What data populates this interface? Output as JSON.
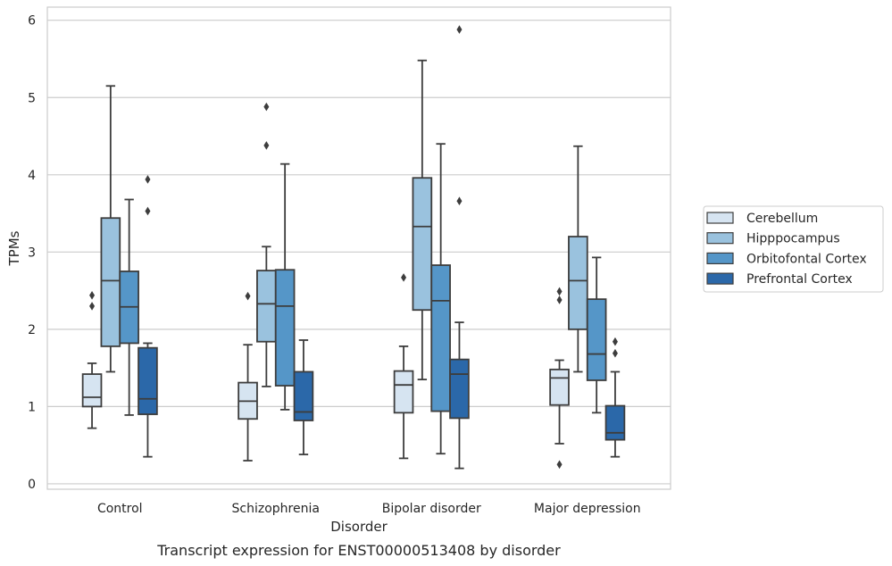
{
  "caption": "Transcript expression for ENST00000513408 by disorder",
  "chart_data": {
    "type": "box",
    "title": "",
    "xlabel": "Disorder",
    "ylabel": "TPMs",
    "ylim": [
      -0.07,
      6.17
    ],
    "yticks": [
      0,
      1,
      2,
      3,
      4,
      5,
      6
    ],
    "grid": "horizontal",
    "legend_position": "right",
    "categories": [
      "Control",
      "Schizophrenia",
      "Bipolar disorder",
      "Major depression"
    ],
    "series": [
      {
        "name": "Cerebellum",
        "color": "#d6e4f1",
        "boxes": [
          {
            "whisker_low": 0.72,
            "q1": 1.0,
            "median": 1.12,
            "q3": 1.42,
            "whisker_high": 1.56,
            "outliers": [
              2.3,
              2.44
            ]
          },
          {
            "whisker_low": 0.3,
            "q1": 0.84,
            "median": 1.07,
            "q3": 1.31,
            "whisker_high": 1.8,
            "outliers": [
              2.43
            ]
          },
          {
            "whisker_low": 0.33,
            "q1": 0.92,
            "median": 1.28,
            "q3": 1.46,
            "whisker_high": 1.78,
            "outliers": [
              2.67
            ]
          },
          {
            "whisker_low": 0.52,
            "q1": 1.02,
            "median": 1.37,
            "q3": 1.48,
            "whisker_high": 1.6,
            "outliers": [
              0.25,
              2.38,
              2.49
            ]
          }
        ]
      },
      {
        "name": "Hipppocampus",
        "color": "#9ac2de",
        "boxes": [
          {
            "whisker_low": 1.45,
            "q1": 1.78,
            "median": 2.63,
            "q3": 3.44,
            "whisker_high": 5.15,
            "outliers": []
          },
          {
            "whisker_low": 1.26,
            "q1": 1.84,
            "median": 2.33,
            "q3": 2.76,
            "whisker_high": 3.07,
            "outliers": [
              4.38,
              4.88
            ]
          },
          {
            "whisker_low": 1.35,
            "q1": 2.25,
            "median": 3.33,
            "q3": 3.96,
            "whisker_high": 5.48,
            "outliers": []
          },
          {
            "whisker_low": 1.45,
            "q1": 2.0,
            "median": 2.63,
            "q3": 3.2,
            "whisker_high": 4.37,
            "outliers": []
          }
        ]
      },
      {
        "name": "Orbitofontal Cortex",
        "color": "#5596c8",
        "boxes": [
          {
            "whisker_low": 0.89,
            "q1": 1.82,
            "median": 2.29,
            "q3": 2.75,
            "whisker_high": 3.68,
            "outliers": []
          },
          {
            "whisker_low": 0.96,
            "q1": 1.27,
            "median": 2.3,
            "q3": 2.77,
            "whisker_high": 4.14,
            "outliers": []
          },
          {
            "whisker_low": 0.39,
            "q1": 0.94,
            "median": 2.37,
            "q3": 2.83,
            "whisker_high": 4.4,
            "outliers": []
          },
          {
            "whisker_low": 0.92,
            "q1": 1.34,
            "median": 1.68,
            "q3": 2.39,
            "whisker_high": 2.93,
            "outliers": []
          }
        ]
      },
      {
        "name": "Prefrontal Cortex",
        "color": "#2b68a9",
        "boxes": [
          {
            "whisker_low": 0.35,
            "q1": 0.9,
            "median": 1.1,
            "q3": 1.76,
            "whisker_high": 1.82,
            "outliers": [
              3.53,
              3.94
            ]
          },
          {
            "whisker_low": 0.38,
            "q1": 0.82,
            "median": 0.93,
            "q3": 1.45,
            "whisker_high": 1.86,
            "outliers": []
          },
          {
            "whisker_low": 0.2,
            "q1": 0.85,
            "median": 1.42,
            "q3": 1.61,
            "whisker_high": 2.09,
            "outliers": [
              3.66,
              5.88
            ]
          },
          {
            "whisker_low": 0.35,
            "q1": 0.57,
            "median": 0.66,
            "q3": 1.01,
            "whisker_high": 1.45,
            "outliers": [
              1.69,
              1.84
            ]
          }
        ]
      }
    ]
  }
}
